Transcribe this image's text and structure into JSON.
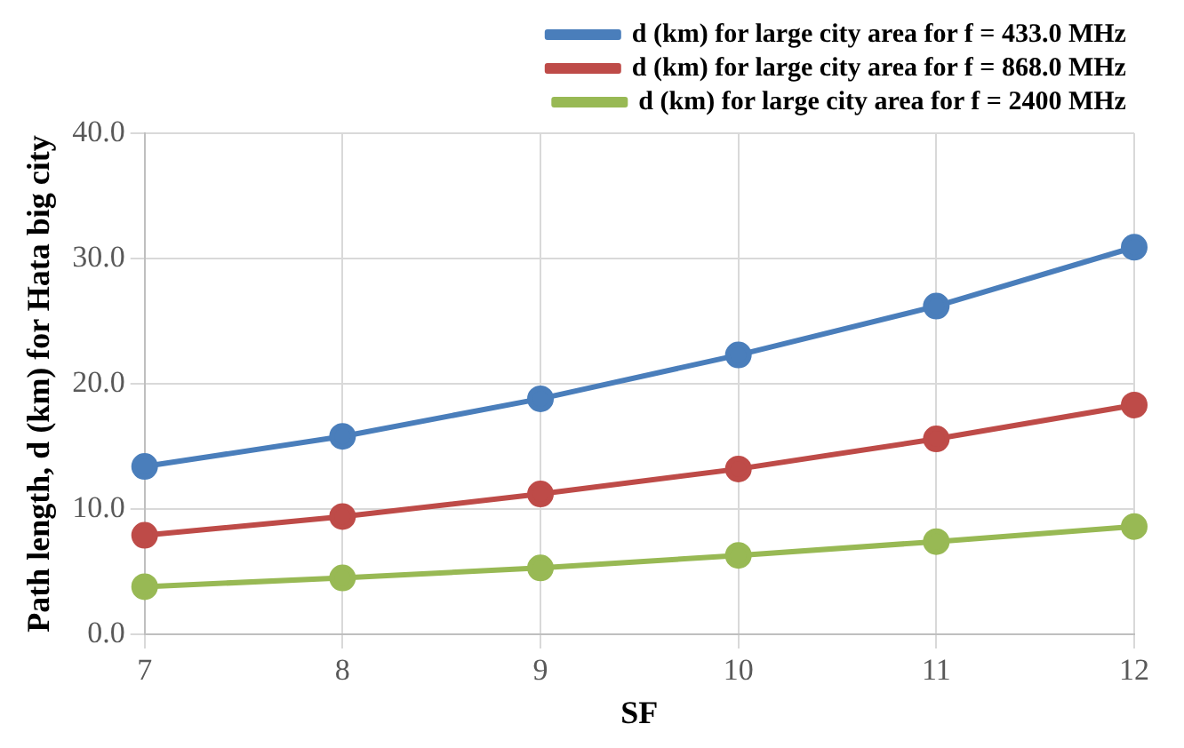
{
  "chart_data": {
    "type": "line",
    "xlabel": "SF",
    "ylabel": "Path length, d (km) for Hata big city",
    "categories": [
      "7",
      "8",
      "9",
      "10",
      "11",
      "12"
    ],
    "series": [
      {
        "name": "d (km) for large city area for f = 433.0 MHz",
        "color": "#4a7ebb",
        "values": [
          13.4,
          15.8,
          18.8,
          22.3,
          26.2,
          30.9
        ]
      },
      {
        "name": "d (km) for large city area for f = 868.0 MHz",
        "color": "#be4b48",
        "values": [
          7.9,
          9.4,
          11.2,
          13.2,
          15.6,
          18.3
        ]
      },
      {
        "name": "d (km) for large city area for f = 2400 MHz",
        "color": "#98b954",
        "values": [
          3.8,
          4.5,
          5.3,
          6.3,
          7.4,
          8.6
        ]
      }
    ],
    "ylim": [
      0,
      40
    ],
    "yticks": [
      {
        "value": 0,
        "label": "0.0"
      },
      {
        "value": 10,
        "label": "10.0"
      },
      {
        "value": 20,
        "label": "20.0"
      },
      {
        "value": 30,
        "label": "30.0"
      },
      {
        "value": 40,
        "label": "40.0"
      }
    ],
    "grid": true,
    "legend": "top right",
    "marker": "circle",
    "line_style": "solid"
  }
}
